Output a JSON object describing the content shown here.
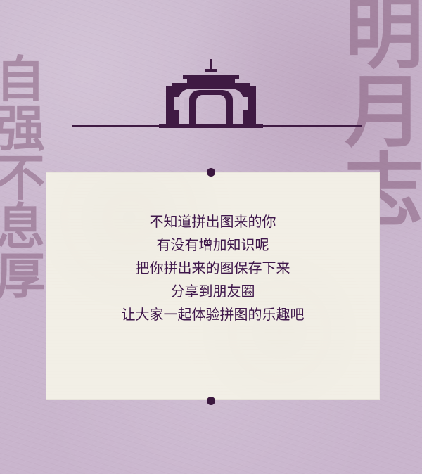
{
  "decor": {
    "left_calligraphy": "自\n强\n不\n息\n厚",
    "right_calligraphy": "明\n月\n志"
  },
  "text_lines": [
    "不知道拼出图来的你",
    "有没有增加知识呢",
    "把你拼出来的图保存下来",
    "分享到朋友圈",
    "让大家一起体验拼图的乐趣吧"
  ]
}
